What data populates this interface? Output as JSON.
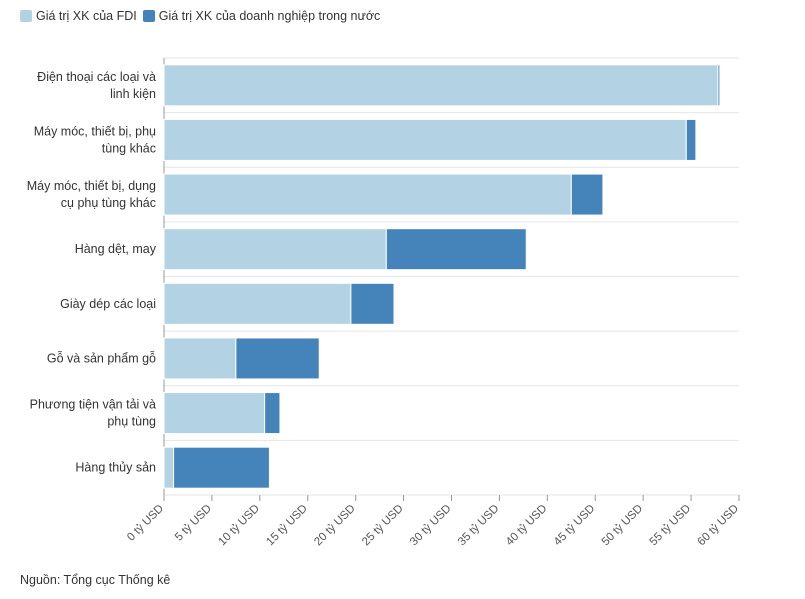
{
  "colors": {
    "fdi": "#b3d2e4",
    "domestic": "#4584bb",
    "grid": "#e6e6e6",
    "axis": "#999999"
  },
  "legend": {
    "fdi_label": "Giá trị XK của FDI",
    "domestic_label": "Giá trị XK của doanh nghiệp trong nước"
  },
  "source": "Nguồn: Tổng cục Thống kê",
  "chart_data": {
    "type": "bar",
    "orientation": "horizontal",
    "stacked": true,
    "categories": [
      [
        "Điện thoại các loại và",
        "linh kiện"
      ],
      [
        "Máy móc, thiết bị, phụ",
        "tùng khác"
      ],
      [
        "Máy móc, thiết bị, dụng",
        "cụ phụ tùng khác"
      ],
      [
        "Hàng dệt, may"
      ],
      [
        "Giày dép các loại"
      ],
      [
        "Gỗ và sản phẩm gỗ"
      ],
      [
        "Phương tiện vận tải và",
        "phụ tùng"
      ],
      [
        "Hàng thủy sản"
      ]
    ],
    "series": [
      {
        "name": "Giá trị XK của FDI",
        "values": [
          57.8,
          54.5,
          42.5,
          23.2,
          19.5,
          7.5,
          10.5,
          1.0
        ]
      },
      {
        "name": "Giá trị XK của doanh nghiệp trong nước",
        "values": [
          0.2,
          1.0,
          3.3,
          14.6,
          4.5,
          8.7,
          1.6,
          10.0
        ]
      }
    ],
    "xlim": [
      0,
      60
    ],
    "xticks": [
      0,
      5,
      10,
      15,
      20,
      25,
      30,
      35,
      40,
      45,
      50,
      55,
      60
    ],
    "xtick_labels": [
      "0 tỷ USD",
      "5 tỷ USD",
      "10 tỷ USD",
      "15 tỷ USD",
      "20 tỷ USD",
      "25 tỷ USD",
      "30 tỷ USD",
      "35 tỷ USD",
      "40 tỷ USD",
      "45 tỷ USD",
      "50 tỷ USD",
      "55 tỷ USD",
      "60 tỷ USD"
    ],
    "grid": true,
    "legend_position": "top-left"
  }
}
